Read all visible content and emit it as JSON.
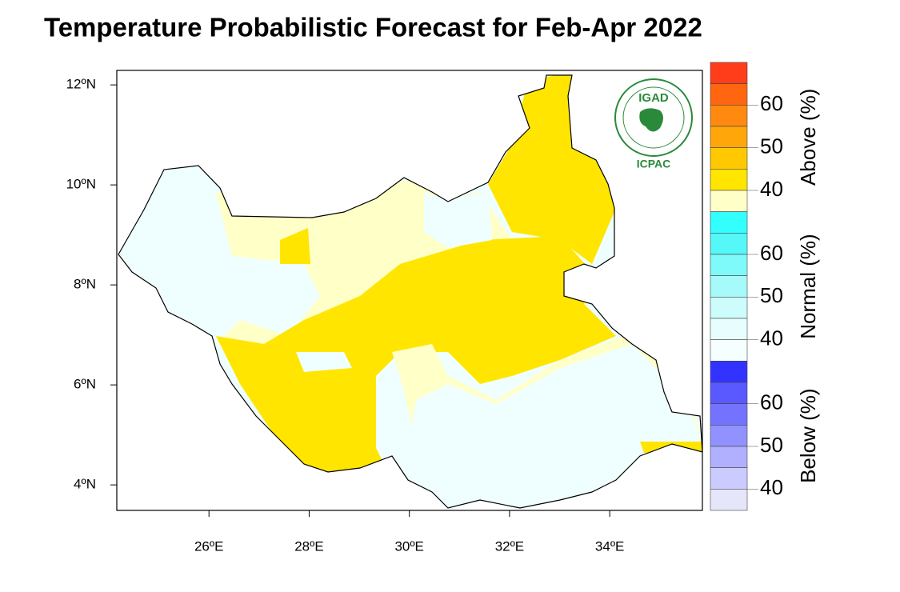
{
  "map": {
    "title": "Temperature Probabilistic Forecast for Feb-Apr 2022",
    "lon_range": [
      24.16,
      35.85
    ],
    "lat_range": [
      3.49,
      12.29
    ],
    "lat_ticks": [
      {
        "value": 4,
        "label": "4ºN"
      },
      {
        "value": 6,
        "label": "6ºN"
      },
      {
        "value": 8,
        "label": "8ºN"
      },
      {
        "value": 10,
        "label": "10ºN"
      },
      {
        "value": 12,
        "label": "12ºN"
      }
    ],
    "lon_ticks": [
      {
        "value": 26,
        "label": "26ºE"
      },
      {
        "value": 28,
        "label": "28ºE"
      },
      {
        "value": 30,
        "label": "30ºE"
      },
      {
        "value": 32,
        "label": "32ºE"
      },
      {
        "value": 34,
        "label": "34ºE"
      }
    ],
    "colorbar": [
      {
        "label": "Above (%)",
        "range": [
          35,
          70
        ],
        "ticks": [
          40,
          50,
          60
        ],
        "colors": [
          "#ff3d1a",
          "#ff660f",
          "#ff8a0f",
          "#ffa70a",
          "#ffc800",
          "#ffe500",
          "#ffffc8"
        ]
      },
      {
        "label": "Normal (%)",
        "range": [
          35,
          70
        ],
        "ticks": [
          40,
          50,
          60
        ],
        "colors": [
          "#33ffff",
          "#55f7f7",
          "#7ffafa",
          "#a6fafa",
          "#ccfcfc",
          "#e8fefe",
          "#f5ffff"
        ]
      },
      {
        "label": "Below (%)",
        "range": [
          35,
          70
        ],
        "ticks": [
          40,
          50,
          60
        ],
        "colors": [
          "#3333ff",
          "#5959ff",
          "#7373ff",
          "#9191ff",
          "#b0b0ff",
          "#cbcbff",
          "#e6e6fb"
        ]
      }
    ],
    "logo": {
      "name": "IGAD",
      "org": "ICPAC"
    }
  }
}
